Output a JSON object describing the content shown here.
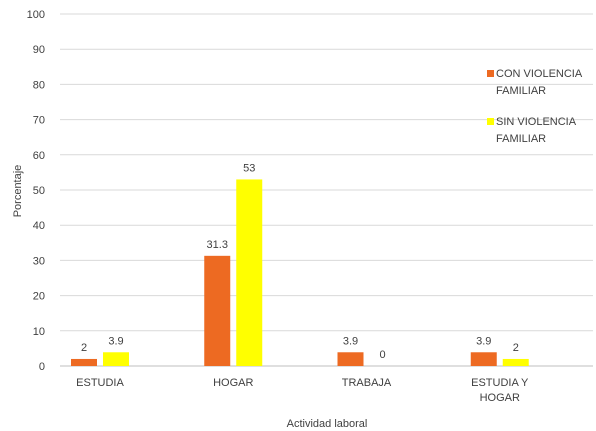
{
  "chart_data": {
    "type": "bar",
    "title": "",
    "xlabel": "Actividad laboral",
    "ylabel": "Porcentaje",
    "ylim": [
      0,
      100
    ],
    "yticks": [
      0,
      10,
      20,
      30,
      40,
      50,
      60,
      70,
      80,
      90,
      100
    ],
    "grid": true,
    "legend_position": "right",
    "categories": [
      [
        "ESTUDIA"
      ],
      [
        "HOGAR"
      ],
      [
        "TRABAJA"
      ],
      [
        "ESTUDIA Y",
        "HOGAR"
      ]
    ],
    "series": [
      {
        "name": "CON VIOLENCIA FAMILIAR",
        "color": "#ED6A22",
        "values": [
          2,
          31.3,
          3.9,
          3.9
        ],
        "labels": [
          "2",
          "31.3",
          "3.9",
          "3.9"
        ]
      },
      {
        "name": "SIN VIOLENCIA FAMILIAR",
        "color": "#FFFF00",
        "values": [
          3.9,
          53,
          0,
          2
        ],
        "labels": [
          "3.9",
          "53",
          "0",
          "2"
        ]
      }
    ]
  }
}
